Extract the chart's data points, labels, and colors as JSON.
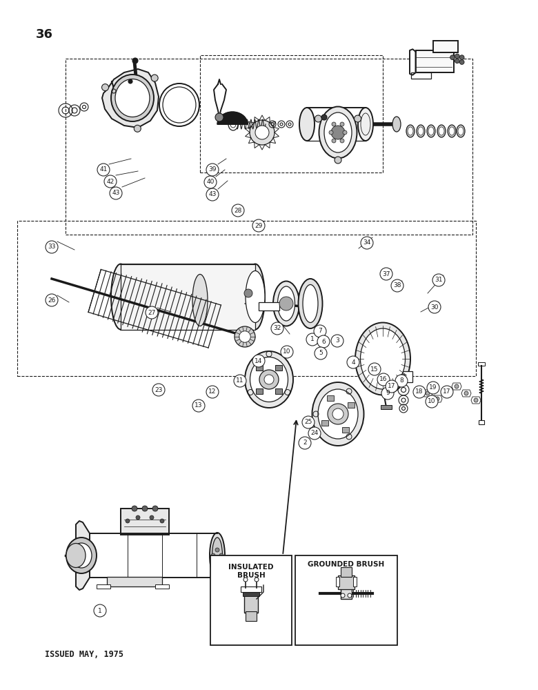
{
  "page_number": "36",
  "issued_text": "ISSUED MAY, 1975",
  "background_color": "#ffffff",
  "line_color": "#1a1a1a",
  "page_num_fontsize": 13,
  "issued_fontsize": 8.5,
  "insulated_brush_label": "INSULATED\nBRUSH",
  "grounded_brush_label": "GROUNDED BRUSH",
  "fig_width": 7.8,
  "fig_height": 10.0,
  "dpi": 100,
  "label_fontsize": 6.5,
  "label_circle_r": 9
}
